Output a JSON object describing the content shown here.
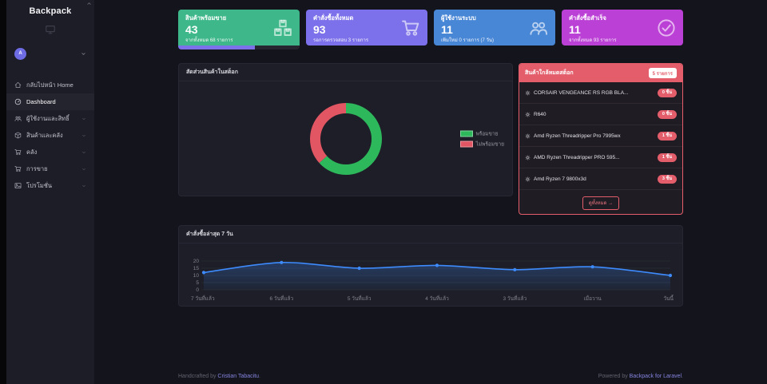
{
  "app": {
    "brand": "Backpack"
  },
  "sidebar": {
    "user": {
      "initial": "A"
    },
    "items": [
      {
        "label": "กลับไปหน้า Home",
        "icon": "home-icon",
        "chevron": false,
        "active": false
      },
      {
        "label": "Dashboard",
        "icon": "gauge-icon",
        "chevron": false,
        "active": true
      },
      {
        "label": "ผู้ใช้งานและสิทธิ์",
        "icon": "users-icon",
        "chevron": true,
        "active": false
      },
      {
        "label": "สินค้าและคลัง",
        "icon": "box-icon",
        "chevron": true,
        "active": false
      },
      {
        "label": "คลัง",
        "icon": "cart-icon",
        "chevron": true,
        "active": false
      },
      {
        "label": "การขาย",
        "icon": "cart-icon",
        "chevron": true,
        "active": false
      },
      {
        "label": "โปรโมชั่น",
        "icon": "image-icon",
        "chevron": true,
        "active": false
      }
    ]
  },
  "stat_cards": [
    {
      "title": "สินค้าพร้อมขาย",
      "value": "43",
      "subtitle": "จากทั้งหมด 68 รายการ",
      "icon": "boxes-icon",
      "color": "#3eb88b",
      "progress_percent": 63
    },
    {
      "title": "คำสั่งซื้อทั้งหมด",
      "value": "93",
      "subtitle": "รอการตรวจสอบ 3 รายการ",
      "icon": "cart-icon",
      "color": "#7c71ea"
    },
    {
      "title": "ผู้ใช้งานระบบ",
      "value": "11",
      "subtitle": "เพิ่มใหม่ 0 รายการ (7 วัน)",
      "icon": "users-icon",
      "color": "#4886d6"
    },
    {
      "title": "คำสั่งซื้อสำเร็จ",
      "value": "11",
      "subtitle": "จากทั้งหมด 93 รายการ",
      "icon": "check-circle-icon",
      "color": "#bb40d6"
    }
  ],
  "chart_data": [
    {
      "type": "pie",
      "donut": true,
      "title": "สัดส่วนสินค้าในสต็อก",
      "labels": [
        "พร้อมขาย",
        "ไม่พร้อมขาย"
      ],
      "values": [
        43,
        25
      ],
      "colors": [
        "#2eb85c",
        "#e25563"
      ],
      "legend_position": "right"
    },
    {
      "type": "line",
      "title": "คำสั่งซื้อล่าสุด 7 วัน",
      "categories": [
        "7 วันที่แล้ว",
        "6 วันที่แล้ว",
        "5 วันที่แล้ว",
        "4 วันที่แล้ว",
        "3 วันที่แล้ว",
        "เมื่อวาน",
        "วันนี้"
      ],
      "values": [
        12,
        19,
        15,
        17,
        14,
        16,
        10
      ],
      "ylim": [
        0,
        20
      ],
      "yticks": [
        20,
        15,
        10,
        5,
        0
      ],
      "color": "#3d8bfd",
      "fill": true,
      "grid": true,
      "legend_position": "none"
    }
  ],
  "low_stock": {
    "title": "สินค้าใกล้หมดสต็อก",
    "count_badge": "5 รายการ",
    "items": [
      {
        "name": "CORSAIR VENGEANCE RS RGB BLA...",
        "qty": "0 ชิ้น"
      },
      {
        "name": "R640",
        "qty": "0 ชิ้น"
      },
      {
        "name": "Amd Ryzen Threadripper Pro 7995wx",
        "qty": "1 ชิ้น"
      },
      {
        "name": "AMD Ryzen Threadripper PRO 595...",
        "qty": "1 ชิ้น"
      },
      {
        "name": "Amd Ryzen 7 9800x3d",
        "qty": "3 ชิ้น"
      }
    ],
    "view_all_label": "ดูทั้งหมด →"
  },
  "footer": {
    "left_prefix": "Handcrafted by ",
    "left_link": "Cristian Tabacitu",
    "left_suffix": ".",
    "right_prefix": "Powered by ",
    "right_link": "Backpack for Laravel",
    "right_suffix": "."
  }
}
